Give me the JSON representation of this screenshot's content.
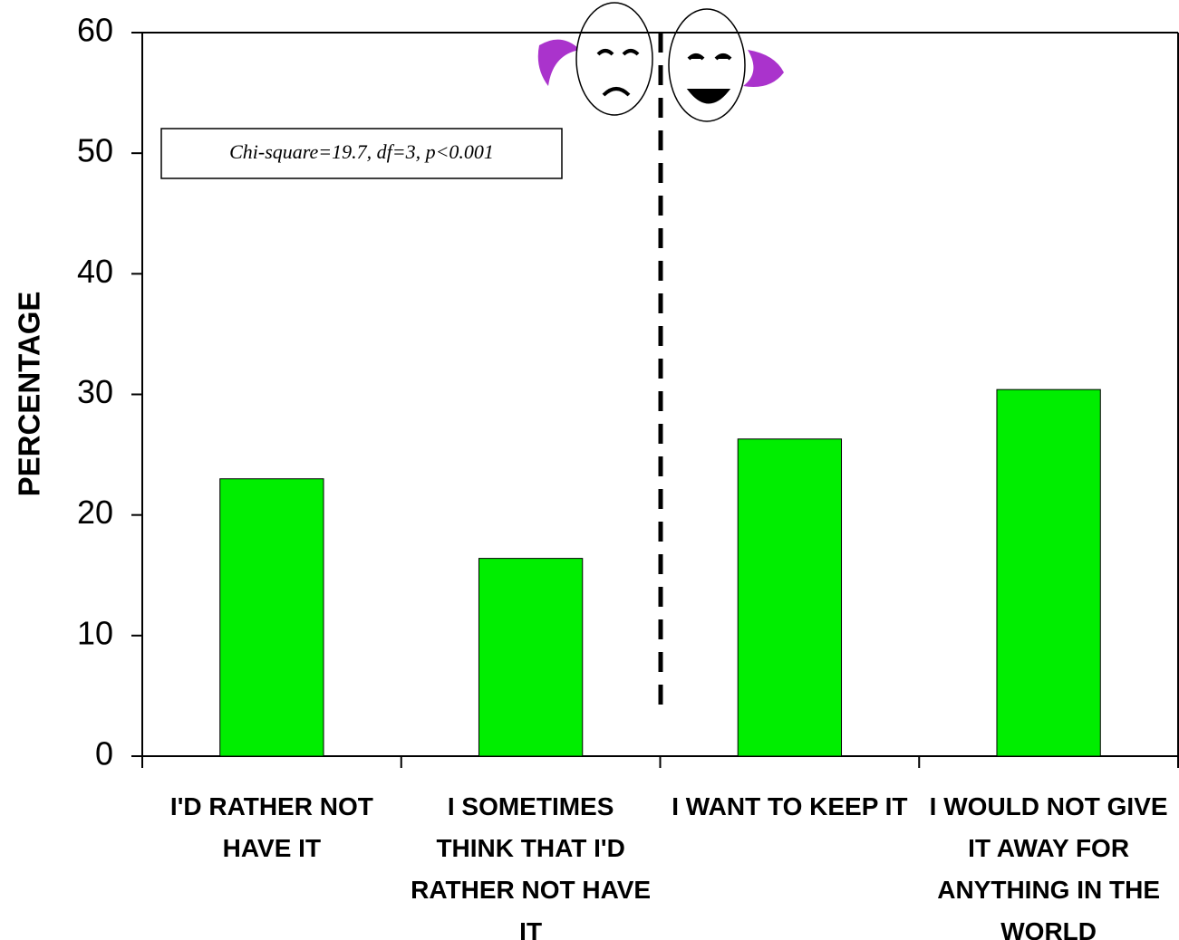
{
  "chart_data": {
    "type": "bar",
    "y_label": "PERCENTAGE",
    "annotation": "Chi-square=19.7, df=3, p<0.001",
    "categories": [
      "I'D RATHER NOT HAVE IT",
      "I SOMETIMES THINK THAT I'D RATHER NOT HAVE IT",
      "I WANT TO KEEP IT",
      "I WOULD NOT GIVE IT AWAY FOR ANYTHING IN THE WORLD"
    ],
    "values": [
      23,
      16.4,
      26.3,
      30.4
    ],
    "color": "#00ee00",
    "ylim": [
      0,
      60
    ],
    "yticks": [
      0,
      10,
      20,
      30,
      40,
      50,
      60
    ],
    "grid": false
  }
}
